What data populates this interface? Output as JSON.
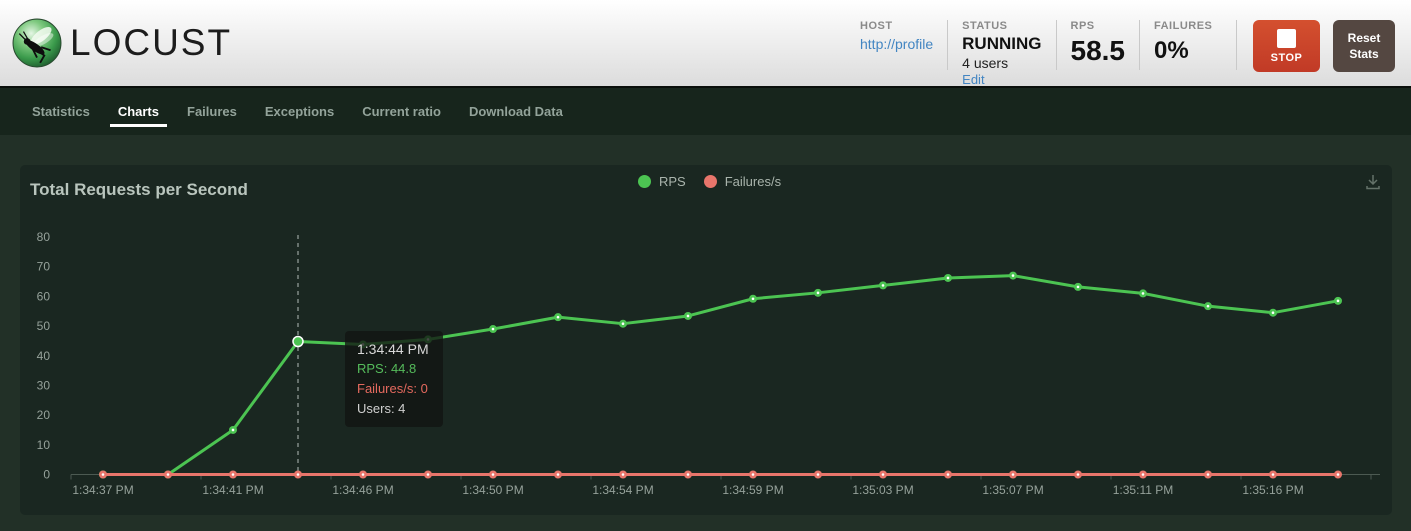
{
  "header": {
    "logo_text": "LOCUST",
    "host": {
      "label": "HOST",
      "value": "http://profile"
    },
    "status": {
      "label": "STATUS",
      "value": "RUNNING",
      "users": "4 users",
      "edit_label": "Edit"
    },
    "rps": {
      "label": "RPS",
      "value": "58.5"
    },
    "failures": {
      "label": "FAILURES",
      "value": "0%"
    },
    "stop_button_label": "STOP",
    "reset_button_label": "Reset\nStats",
    "colors": {
      "stop_red": "#c6432d",
      "reset_gray": "#544741",
      "link_blue": "#4285c2"
    }
  },
  "nav": {
    "tabs": [
      {
        "label": "Statistics",
        "active": false
      },
      {
        "label": "Charts",
        "active": true
      },
      {
        "label": "Failures",
        "active": false
      },
      {
        "label": "Exceptions",
        "active": false
      },
      {
        "label": "Current ratio",
        "active": false
      },
      {
        "label": "Download Data",
        "active": false
      }
    ]
  },
  "chart_data": {
    "type": "line",
    "title": "Total Requests per Second",
    "legend": [
      {
        "name": "RPS",
        "color": "#4cc452"
      },
      {
        "name": "Failures/s",
        "color": "#e8756b"
      }
    ],
    "legend_position": "top-center",
    "grid": false,
    "ylim": [
      0,
      80
    ],
    "y_ticks": [
      0,
      10,
      20,
      30,
      40,
      50,
      60,
      70,
      80
    ],
    "x_tick_labels": [
      "1:34:37 PM",
      "1:34:41 PM",
      "1:34:46 PM",
      "1:34:50 PM",
      "1:34:54 PM",
      "1:34:59 PM",
      "1:35:03 PM",
      "1:35:07 PM",
      "1:35:11 PM",
      "1:35:16 PM"
    ],
    "series": [
      {
        "name": "RPS",
        "color": "#4cc452",
        "values": [
          0,
          0,
          15.0,
          44.8,
          43.8,
          45.5,
          49.0,
          53.0,
          50.8,
          53.4,
          59.2,
          61.2,
          63.7,
          66.2,
          67.0,
          63.2,
          61.0,
          56.7,
          54.5,
          58.5
        ]
      },
      {
        "name": "Failures/s",
        "color": "#e8756b",
        "values": [
          0,
          0,
          0,
          0,
          0,
          0,
          0,
          0,
          0,
          0,
          0,
          0,
          0,
          0,
          0,
          0,
          0,
          0,
          0,
          0
        ]
      }
    ],
    "tooltip": {
      "point_index": 3,
      "time": "1:34:44 PM",
      "rps_line": "RPS: 44.8",
      "failures_line": "Failures/s: 0",
      "users_line": "Users: 4"
    },
    "axis_color": "#4c5a52",
    "hover_line_color": "#cfd6d2"
  }
}
